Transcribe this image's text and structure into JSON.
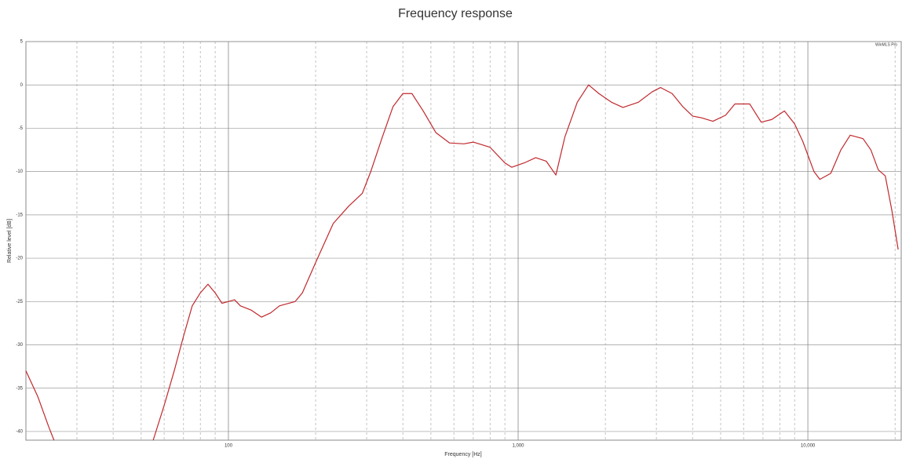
{
  "chart_data": {
    "type": "line",
    "title": "Frequency response",
    "x_label": "Frequency [Hz]",
    "y_label": "Relative level [dB]",
    "annotation": "WinMLS Pro",
    "log_x": true,
    "grid": true,
    "xlim": [
      20,
      21000
    ],
    "ylim": [
      -41,
      5
    ],
    "xticks": [
      100,
      {
        "value": 1000,
        "label": "1,000"
      },
      {
        "value": 10000,
        "label": "10,000"
      }
    ],
    "xminorticks": [
      30,
      40,
      50,
      60,
      70,
      80,
      90,
      200,
      300,
      400,
      500,
      600,
      700,
      800,
      900,
      2000,
      3000,
      4000,
      5000,
      6000,
      7000,
      8000,
      9000,
      20000
    ],
    "yticks": [
      5,
      0,
      -5,
      -10,
      -15,
      -20,
      -25,
      -30,
      -35,
      -40
    ],
    "x": [
      20,
      22,
      24,
      25,
      40,
      55,
      60,
      65,
      70,
      75,
      80,
      85,
      90,
      95,
      100,
      105,
      110,
      120,
      130,
      140,
      150,
      170,
      180,
      200,
      230,
      260,
      290,
      310,
      340,
      370,
      400,
      430,
      470,
      520,
      580,
      650,
      700,
      800,
      900,
      950,
      1050,
      1150,
      1250,
      1350,
      1450,
      1600,
      1750,
      1900,
      2100,
      2300,
      2600,
      2900,
      3100,
      3400,
      3700,
      4000,
      4300,
      4700,
      5200,
      5600,
      6300,
      6900,
      7500,
      8300,
      9000,
      9600,
      10500,
      11000,
      12000,
      13000,
      14000,
      15500,
      16500,
      17500,
      18500,
      19500,
      20500
    ],
    "series": [
      {
        "name": "Frequency response",
        "color": "#c0282d",
        "values": [
          -33,
          -36,
          -39.5,
          -41,
          null,
          -41,
          -37,
          -33,
          -29,
          -25.5,
          -24,
          -23,
          -24,
          -25.2,
          -25,
          -24.8,
          -25.5,
          -26,
          -26.8,
          -26.3,
          -25.5,
          -25,
          -24,
          -20.5,
          -16,
          -14,
          -12.5,
          -10,
          -6,
          -2.5,
          -1,
          -1,
          -3,
          -5.5,
          -6.7,
          -6.8,
          -6.6,
          -7.2,
          -9,
          -9.5,
          -9,
          -8.4,
          -8.8,
          -10.4,
          -6,
          -2,
          0,
          -1,
          -2,
          -2.6,
          -2,
          -0.8,
          -0.3,
          -1,
          -2.5,
          -3.6,
          -3.8,
          -4.2,
          -3.5,
          -2.2,
          -2.2,
          -4.3,
          -4,
          -3,
          -4.5,
          -6.5,
          -10,
          -10.9,
          -10.2,
          -7.5,
          -5.8,
          -6.2,
          -7.5,
          -9.8,
          -10.5,
          -14.5,
          -19
        ]
      }
    ]
  }
}
